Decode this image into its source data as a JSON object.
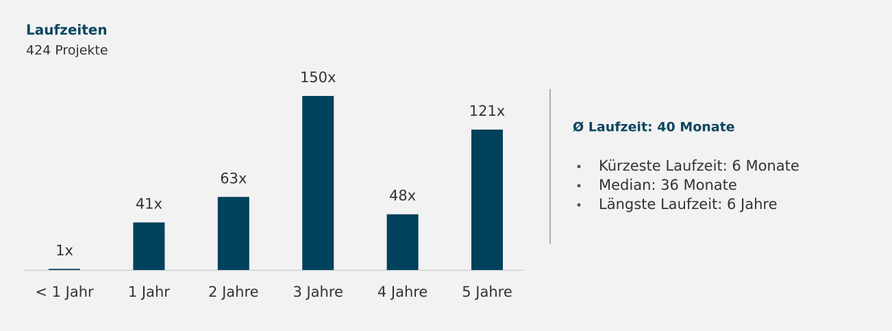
{
  "chart_data": {
    "type": "bar",
    "title": "Laufzeiten",
    "subtitle": "424 Projekte",
    "categories": [
      "< 1 Jahr",
      "1 Jahr",
      "2 Jahre",
      "3 Jahre",
      "4 Jahre",
      "5 Jahre"
    ],
    "values": [
      1,
      41,
      63,
      150,
      48,
      121
    ],
    "value_labels": [
      "1x",
      "41x",
      "63x",
      "150x",
      "48x",
      "121x"
    ],
    "color": "#00415c"
  },
  "summary": {
    "heading": "Ø Laufzeit: 40 Monate",
    "items": [
      "Kürzeste Laufzeit: 6 Monate",
      "Median: 36 Monate",
      "Längste Laufzeit: 6 Jahre"
    ]
  }
}
